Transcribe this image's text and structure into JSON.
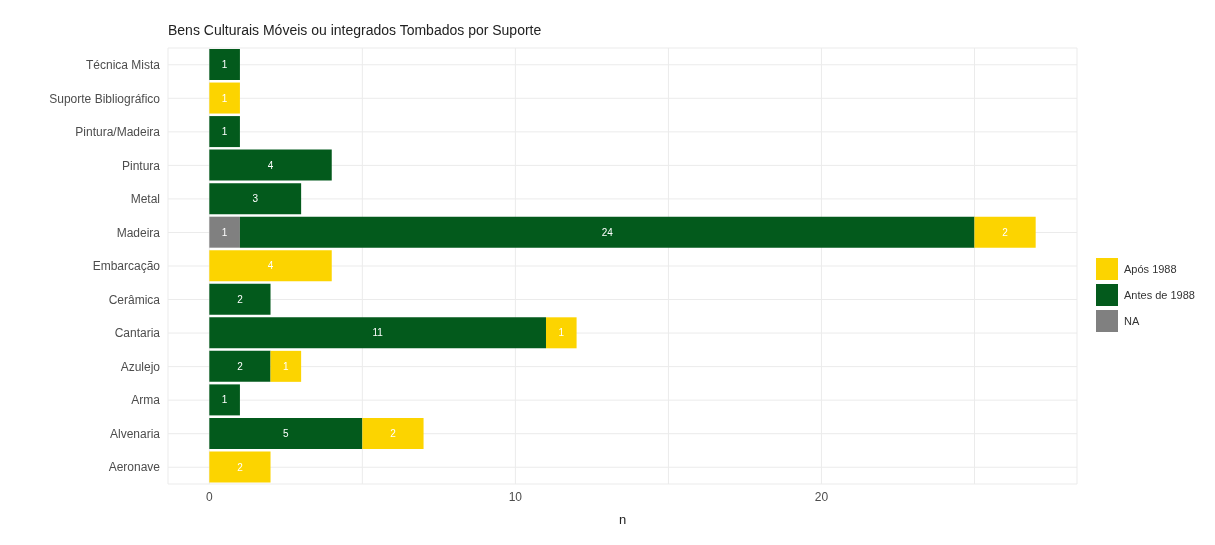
{
  "chart_data": {
    "type": "bar",
    "orientation": "horizontal",
    "stacked": true,
    "title": "Bens Culturais Móveis ou integrados Tombados por Suporte",
    "xlabel": "n",
    "categories": [
      "Técnica Mista",
      "Suporte Bibliográfico",
      "Pintura/Madeira",
      "Pintura",
      "Metal",
      "Madeira",
      "Embarcação",
      "Cerâmica",
      "Cantaria",
      "Azulejo",
      "Arma",
      "Alvenaria",
      "Aeronave"
    ],
    "series": [
      {
        "name": "NA",
        "color": "#808080",
        "values": [
          null,
          null,
          null,
          null,
          null,
          1,
          null,
          null,
          null,
          null,
          null,
          null,
          null
        ]
      },
      {
        "name": "Antes de 1988",
        "color": "#035a1c",
        "values": [
          1,
          null,
          1,
          4,
          3,
          24,
          null,
          2,
          11,
          2,
          1,
          5,
          null
        ]
      },
      {
        "name": "Após 1988",
        "color": "#fcd400",
        "values": [
          null,
          1,
          null,
          null,
          null,
          2,
          4,
          null,
          1,
          1,
          null,
          2,
          2
        ]
      }
    ],
    "xlim": [
      -1.35,
      28.35
    ],
    "xticks": [
      0,
      {
        "value": 5,
        "label": null
      },
      10,
      {
        "value": 15,
        "label": null
      },
      20,
      {
        "value": 25,
        "label": null
      }
    ],
    "grid": true,
    "legend": "right",
    "data_labels": true
  }
}
